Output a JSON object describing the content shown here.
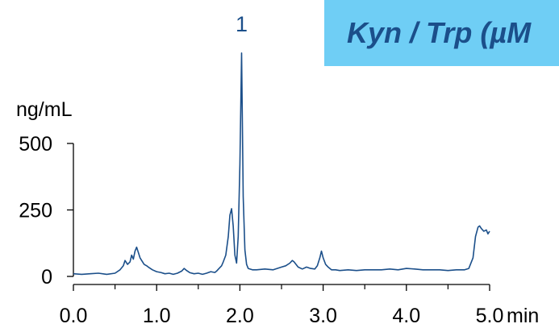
{
  "banner": {
    "text": "Kyn / Trp (µM",
    "background": "#6fcef5",
    "text_color": "#1b4f8a"
  },
  "chart_data": {
    "type": "line",
    "ylabel": "ng/mL",
    "xunit": "min",
    "xlim": [
      0.0,
      5.0
    ],
    "ylim": [
      0,
      500
    ],
    "xticks": [
      0.0,
      1.0,
      2.0,
      3.0,
      4.0,
      5.0
    ],
    "xtick_labels": [
      "0.0",
      "1.0",
      "2.0",
      "3.0",
      "4.0",
      "5.0"
    ],
    "xminor_ticks": [
      0.5,
      1.5,
      2.5,
      3.5,
      4.5
    ],
    "yticks": [
      0,
      250,
      500
    ],
    "ytick_labels": [
      "0",
      "250",
      "500"
    ],
    "peak_annotations": [
      {
        "label": "1",
        "x": 2.02
      }
    ],
    "line_color": "#1b4f8a",
    "grid": false,
    "series": [
      {
        "x": [
          0.0,
          0.1,
          0.2,
          0.3,
          0.4,
          0.5,
          0.56,
          0.6,
          0.62,
          0.65,
          0.68,
          0.7,
          0.72,
          0.74,
          0.76,
          0.78,
          0.8,
          0.82,
          0.85,
          0.88,
          0.9,
          0.95,
          1.0,
          1.05,
          1.1,
          1.15,
          1.2,
          1.25,
          1.3,
          1.33,
          1.36,
          1.4,
          1.45,
          1.5,
          1.55,
          1.6,
          1.65,
          1.7,
          1.72,
          1.75,
          1.78,
          1.8,
          1.83,
          1.86,
          1.88,
          1.9,
          1.92,
          1.94,
          1.96,
          1.98,
          2.0,
          2.02,
          2.04,
          2.06,
          2.08,
          2.1,
          2.15,
          2.2,
          2.3,
          2.4,
          2.5,
          2.55,
          2.6,
          2.63,
          2.65,
          2.7,
          2.75,
          2.8,
          2.85,
          2.9,
          2.93,
          2.96,
          2.98,
          3.0,
          3.03,
          3.06,
          3.1,
          3.15,
          3.2,
          3.3,
          3.4,
          3.5,
          3.6,
          3.7,
          3.8,
          3.9,
          4.0,
          4.1,
          4.2,
          4.3,
          4.4,
          4.5,
          4.6,
          4.7,
          4.75,
          4.8,
          4.83,
          4.86,
          4.88,
          4.9,
          4.93,
          4.96,
          4.98,
          5.0
        ],
        "y": [
          10,
          8,
          10,
          12,
          8,
          12,
          25,
          40,
          60,
          45,
          55,
          80,
          65,
          95,
          110,
          90,
          70,
          60,
          45,
          40,
          35,
          25,
          18,
          15,
          10,
          12,
          8,
          12,
          20,
          30,
          22,
          14,
          10,
          12,
          8,
          12,
          18,
          15,
          20,
          30,
          40,
          55,
          80,
          150,
          230,
          255,
          190,
          80,
          50,
          150,
          420,
          840,
          300,
          100,
          45,
          30,
          25,
          25,
          28,
          25,
          35,
          40,
          50,
          60,
          55,
          35,
          28,
          35,
          30,
          28,
          40,
          70,
          95,
          70,
          45,
          35,
          25,
          25,
          22,
          25,
          22,
          25,
          25,
          25,
          28,
          25,
          30,
          28,
          25,
          25,
          25,
          22,
          25,
          25,
          30,
          70,
          150,
          185,
          190,
          180,
          170,
          175,
          160,
          170
        ]
      }
    ]
  }
}
